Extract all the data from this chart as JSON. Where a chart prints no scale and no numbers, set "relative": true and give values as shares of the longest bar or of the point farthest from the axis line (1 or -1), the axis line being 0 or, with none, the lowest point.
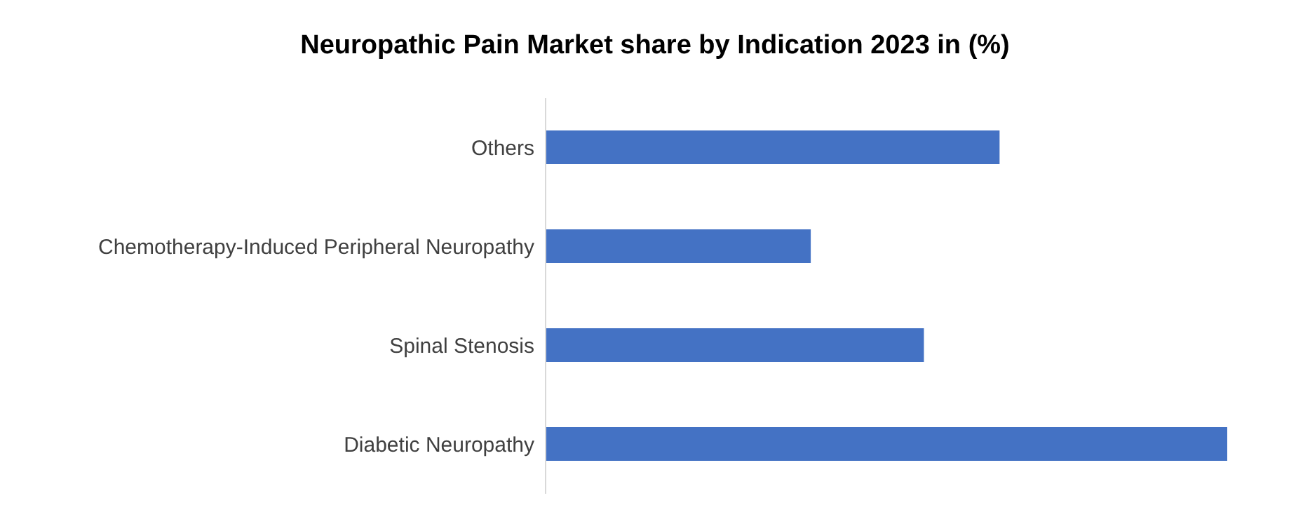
{
  "chart_data": {
    "type": "bar",
    "orientation": "horizontal",
    "relative": true,
    "title": "Neuropathic Pain Market share by Indication 2023 in (%)",
    "categories": [
      "Others",
      "Chemotherapy-Induced Peripheral Neuropathy",
      "Spinal Stenosis",
      "Diabetic Neuropathy"
    ],
    "values": [
      0.666,
      0.389,
      0.555,
      1
    ],
    "color": "#4472c4"
  }
}
